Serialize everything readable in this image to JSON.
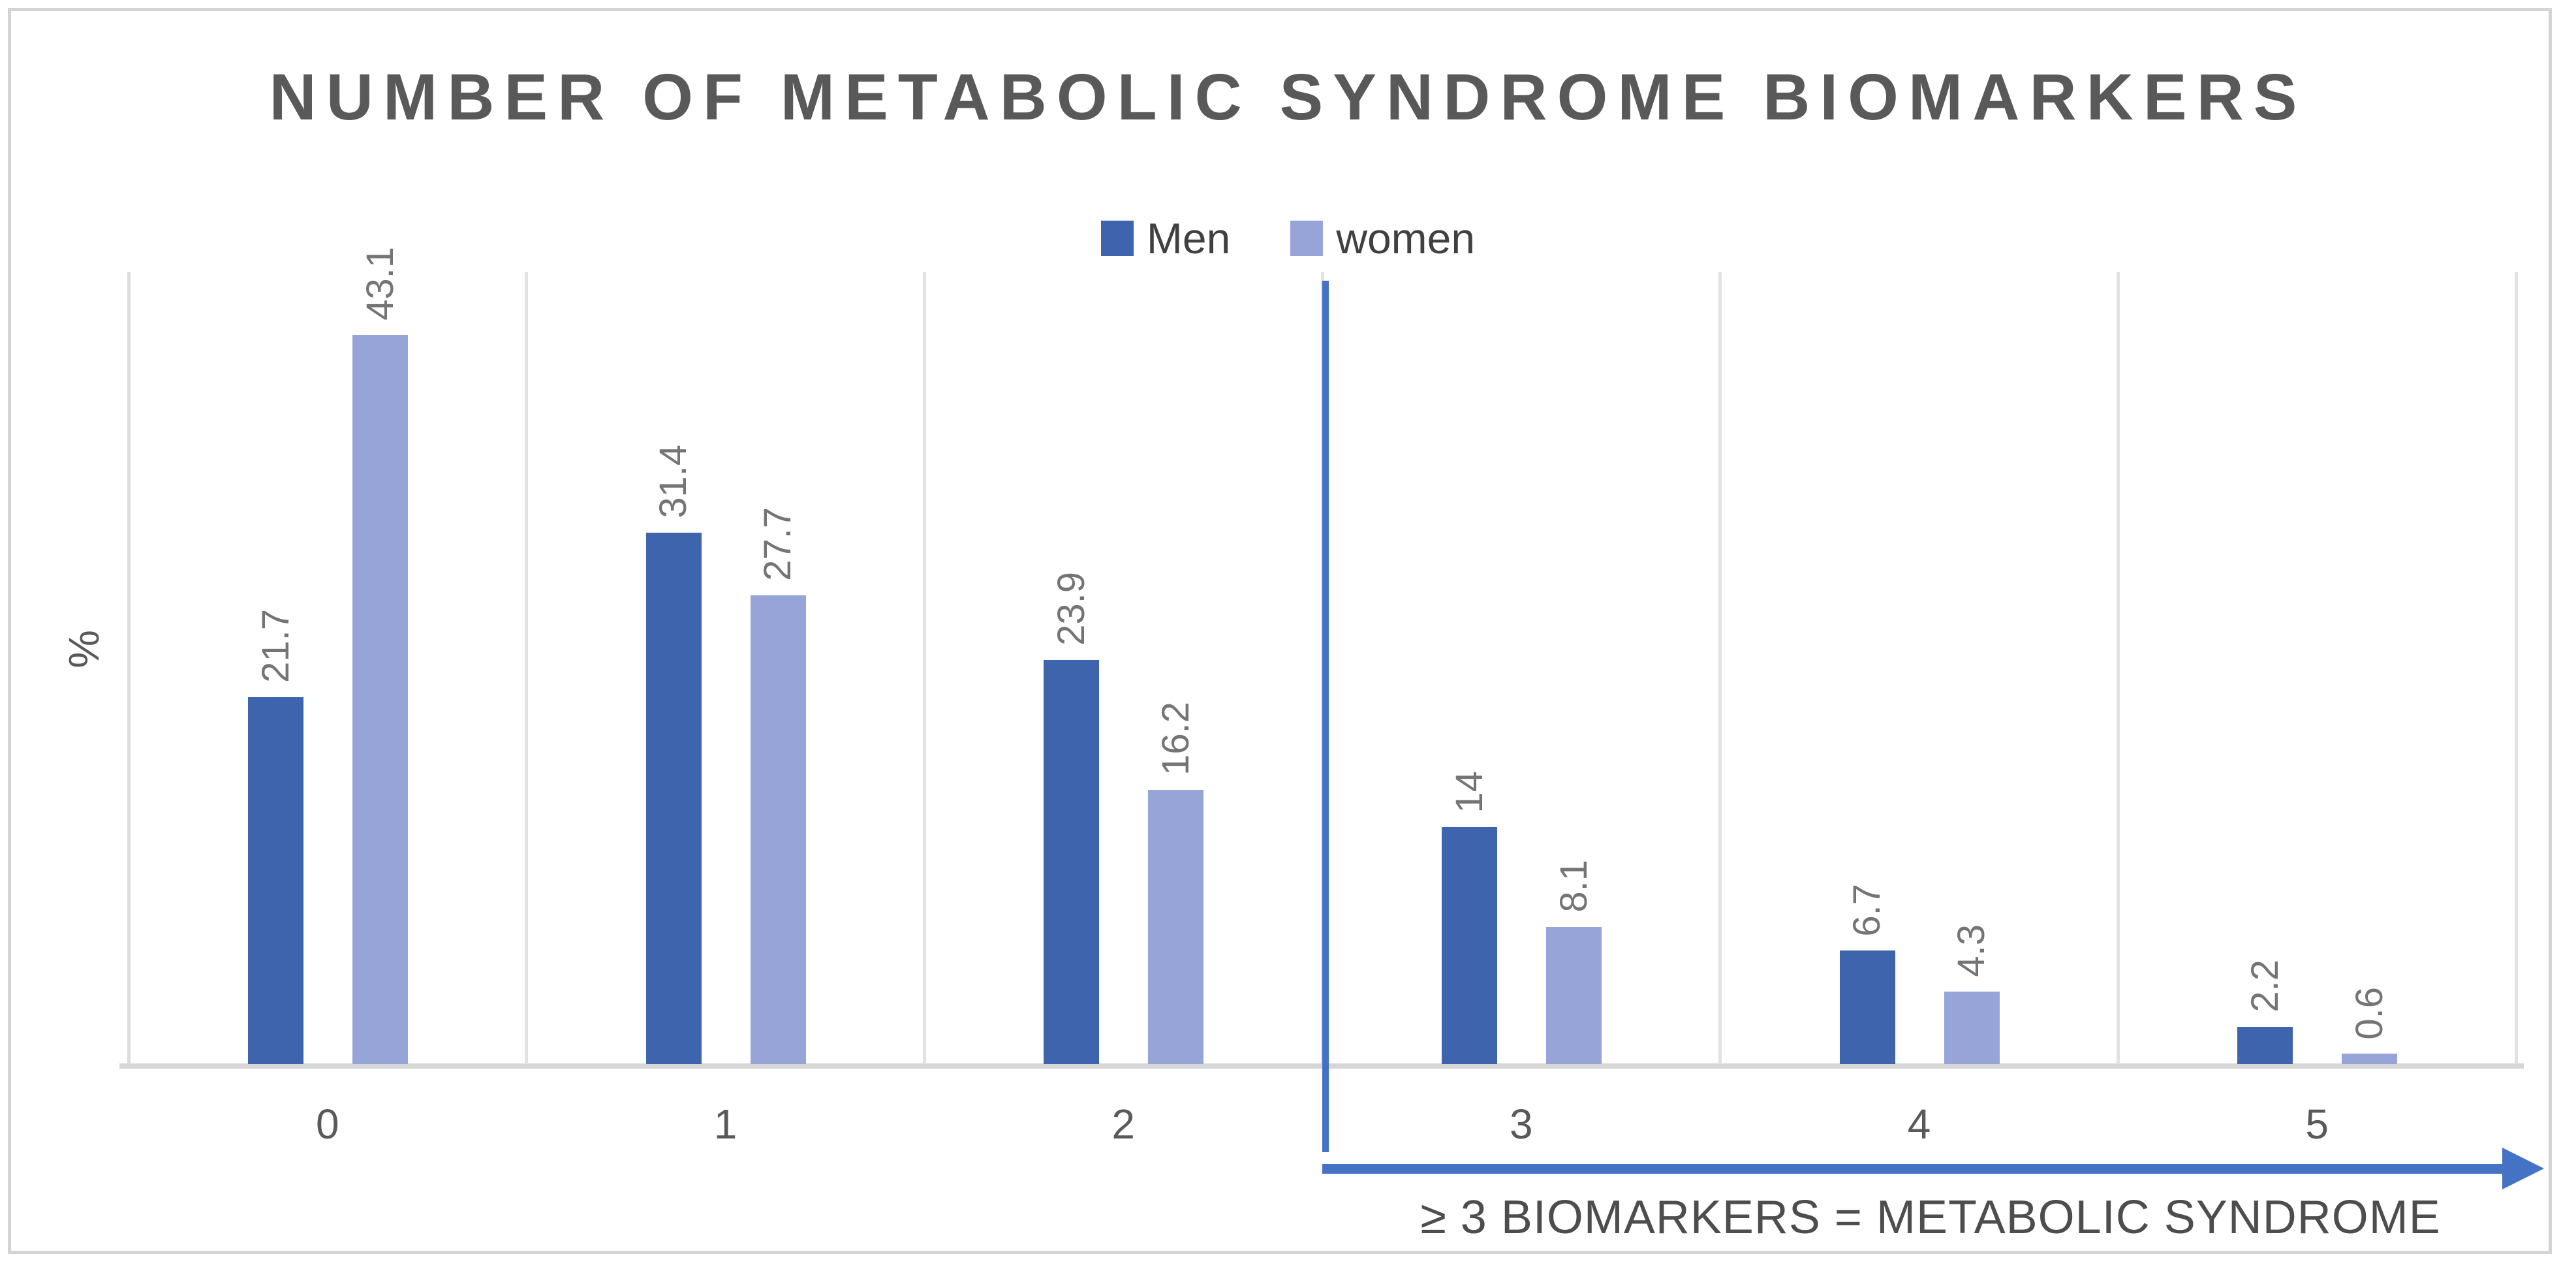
{
  "chart_data": {
    "type": "bar",
    "title": "NUMBER OF METABOLIC SYNDROME BIOMARKERS",
    "categories": [
      "0",
      "1",
      "2",
      "3",
      "4",
      "5"
    ],
    "series": [
      {
        "name": "Men",
        "color": "#3E64AD",
        "values": [
          21.7,
          31.4,
          23.9,
          14,
          6.7,
          2.2
        ]
      },
      {
        "name": "women",
        "color": "#96A4D7",
        "values": [
          43.1,
          27.7,
          16.2,
          8.1,
          4.3,
          0.6
        ]
      }
    ],
    "xlabel": "",
    "ylabel": "%",
    "ylim": [
      0,
      46.8
    ],
    "y_tick_labels_visible": false,
    "grid": "vertical-category-separators-only",
    "legend_position": "top-center",
    "data_labels": "values-rotated-90-above-bars",
    "annotation": {
      "text": "≥ 3 BIOMARKERS = METABOLIC SYNDROME",
      "divider_after_category": "2",
      "arrow_direction": "right"
    }
  },
  "colors": {
    "accent_blue": "#4472C4",
    "men_bar": "#3E64AD",
    "women_bar": "#96A4D7",
    "title_text": "#595959",
    "tick_text": "#595959",
    "data_label_text": "#747474",
    "legend_text": "#404040",
    "annotation_text": "#4d4d4d",
    "gridline": "#e2e2e2",
    "axis_line": "#d6d6d6",
    "figure_border": "#d4d4d4"
  }
}
